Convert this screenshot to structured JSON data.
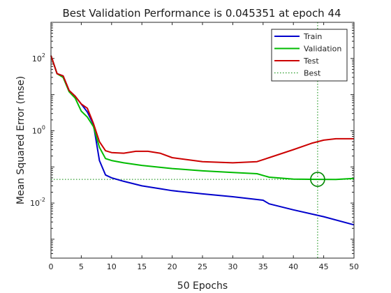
{
  "chart_data": {
    "type": "line",
    "title": "Best Validation Performance is 0.045351 at epoch 44",
    "xlabel": "50 Epochs",
    "ylabel": "Mean Squared Error  (mse)",
    "xlim": [
      0,
      50
    ],
    "ylim": [
      0.0003,
      1000
    ],
    "y_scale": "log",
    "x_ticks": [
      0,
      5,
      10,
      15,
      20,
      25,
      30,
      35,
      40,
      45,
      50
    ],
    "y_ticks": [
      {
        "value": 0.01,
        "base": "10",
        "exp": "-2"
      },
      {
        "value": 1,
        "base": "10",
        "exp": "0"
      },
      {
        "value": 100,
        "base": "10",
        "exp": "2"
      }
    ],
    "legend_position": "top-right",
    "series": [
      {
        "name": "Train",
        "color": "#0000cc",
        "style": "solid",
        "x": [
          0,
          1,
          2,
          3,
          4,
          5,
          6,
          7,
          8,
          9,
          10,
          12,
          15,
          18,
          20,
          25,
          30,
          35,
          36,
          40,
          45,
          50
        ],
        "y": [
          120,
          38,
          33,
          13,
          9,
          5.5,
          3.3,
          1.5,
          0.15,
          0.06,
          0.05,
          0.04,
          0.03,
          0.025,
          0.022,
          0.018,
          0.015,
          0.012,
          0.0095,
          0.0065,
          0.0042,
          0.0025
        ]
      },
      {
        "name": "Validation",
        "color": "#00bb00",
        "style": "solid",
        "x": [
          0,
          1,
          2,
          3,
          4,
          5,
          6,
          7,
          8,
          9,
          10,
          12,
          15,
          20,
          25,
          30,
          34,
          36,
          40,
          44,
          47,
          50
        ],
        "y": [
          120,
          38,
          30,
          12,
          8,
          3.5,
          2.4,
          1.3,
          0.35,
          0.17,
          0.15,
          0.13,
          0.11,
          0.09,
          0.078,
          0.07,
          0.065,
          0.052,
          0.046,
          0.045351,
          0.045,
          0.048
        ]
      },
      {
        "name": "Test",
        "color": "#cc0000",
        "style": "solid",
        "x": [
          0,
          1,
          2,
          3,
          4,
          5,
          6,
          7,
          8,
          9,
          10,
          12,
          14,
          16,
          18,
          20,
          25,
          30,
          34,
          36,
          40,
          43,
          45,
          47,
          50
        ],
        "y": [
          120,
          38,
          33,
          13,
          9,
          5.5,
          4.2,
          1.6,
          0.5,
          0.28,
          0.25,
          0.24,
          0.27,
          0.27,
          0.24,
          0.18,
          0.14,
          0.13,
          0.14,
          0.18,
          0.3,
          0.45,
          0.55,
          0.6,
          0.6
        ]
      }
    ],
    "best_label": "Best",
    "best_color": "#008800",
    "best": {
      "epoch": 44,
      "value": 0.045351
    }
  }
}
